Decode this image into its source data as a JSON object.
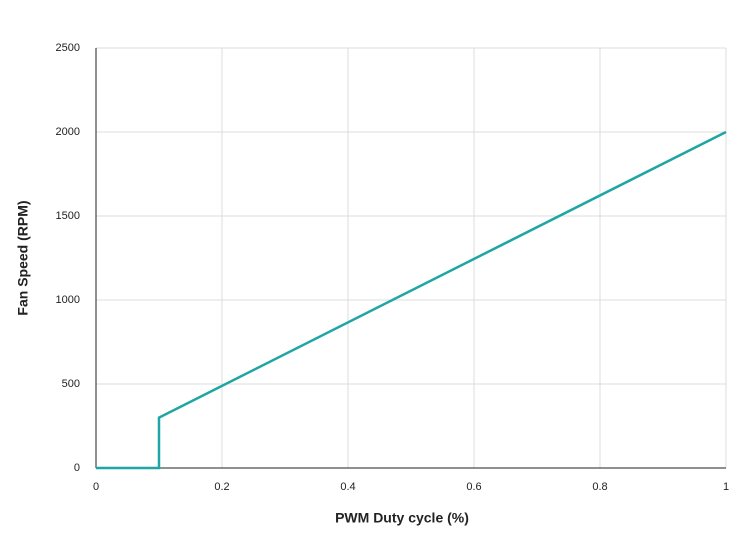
{
  "chart_data": {
    "type": "line",
    "x_label": "PWM Duty cycle (%)",
    "y_label": "Fan Speed (RPM)",
    "x": [
      0,
      0.1,
      0.1,
      1
    ],
    "series": [
      {
        "color": "#1fa5a3",
        "values": [
          0,
          0,
          300,
          2000
        ]
      }
    ],
    "xlim": [
      0,
      1
    ],
    "xticks": [
      0,
      0.2,
      0.4,
      0.6,
      0.8,
      1
    ],
    "ylim": [
      0,
      2500
    ],
    "yticks": [
      0,
      500,
      1000,
      1500,
      2000,
      2500
    ],
    "grid": true
  }
}
